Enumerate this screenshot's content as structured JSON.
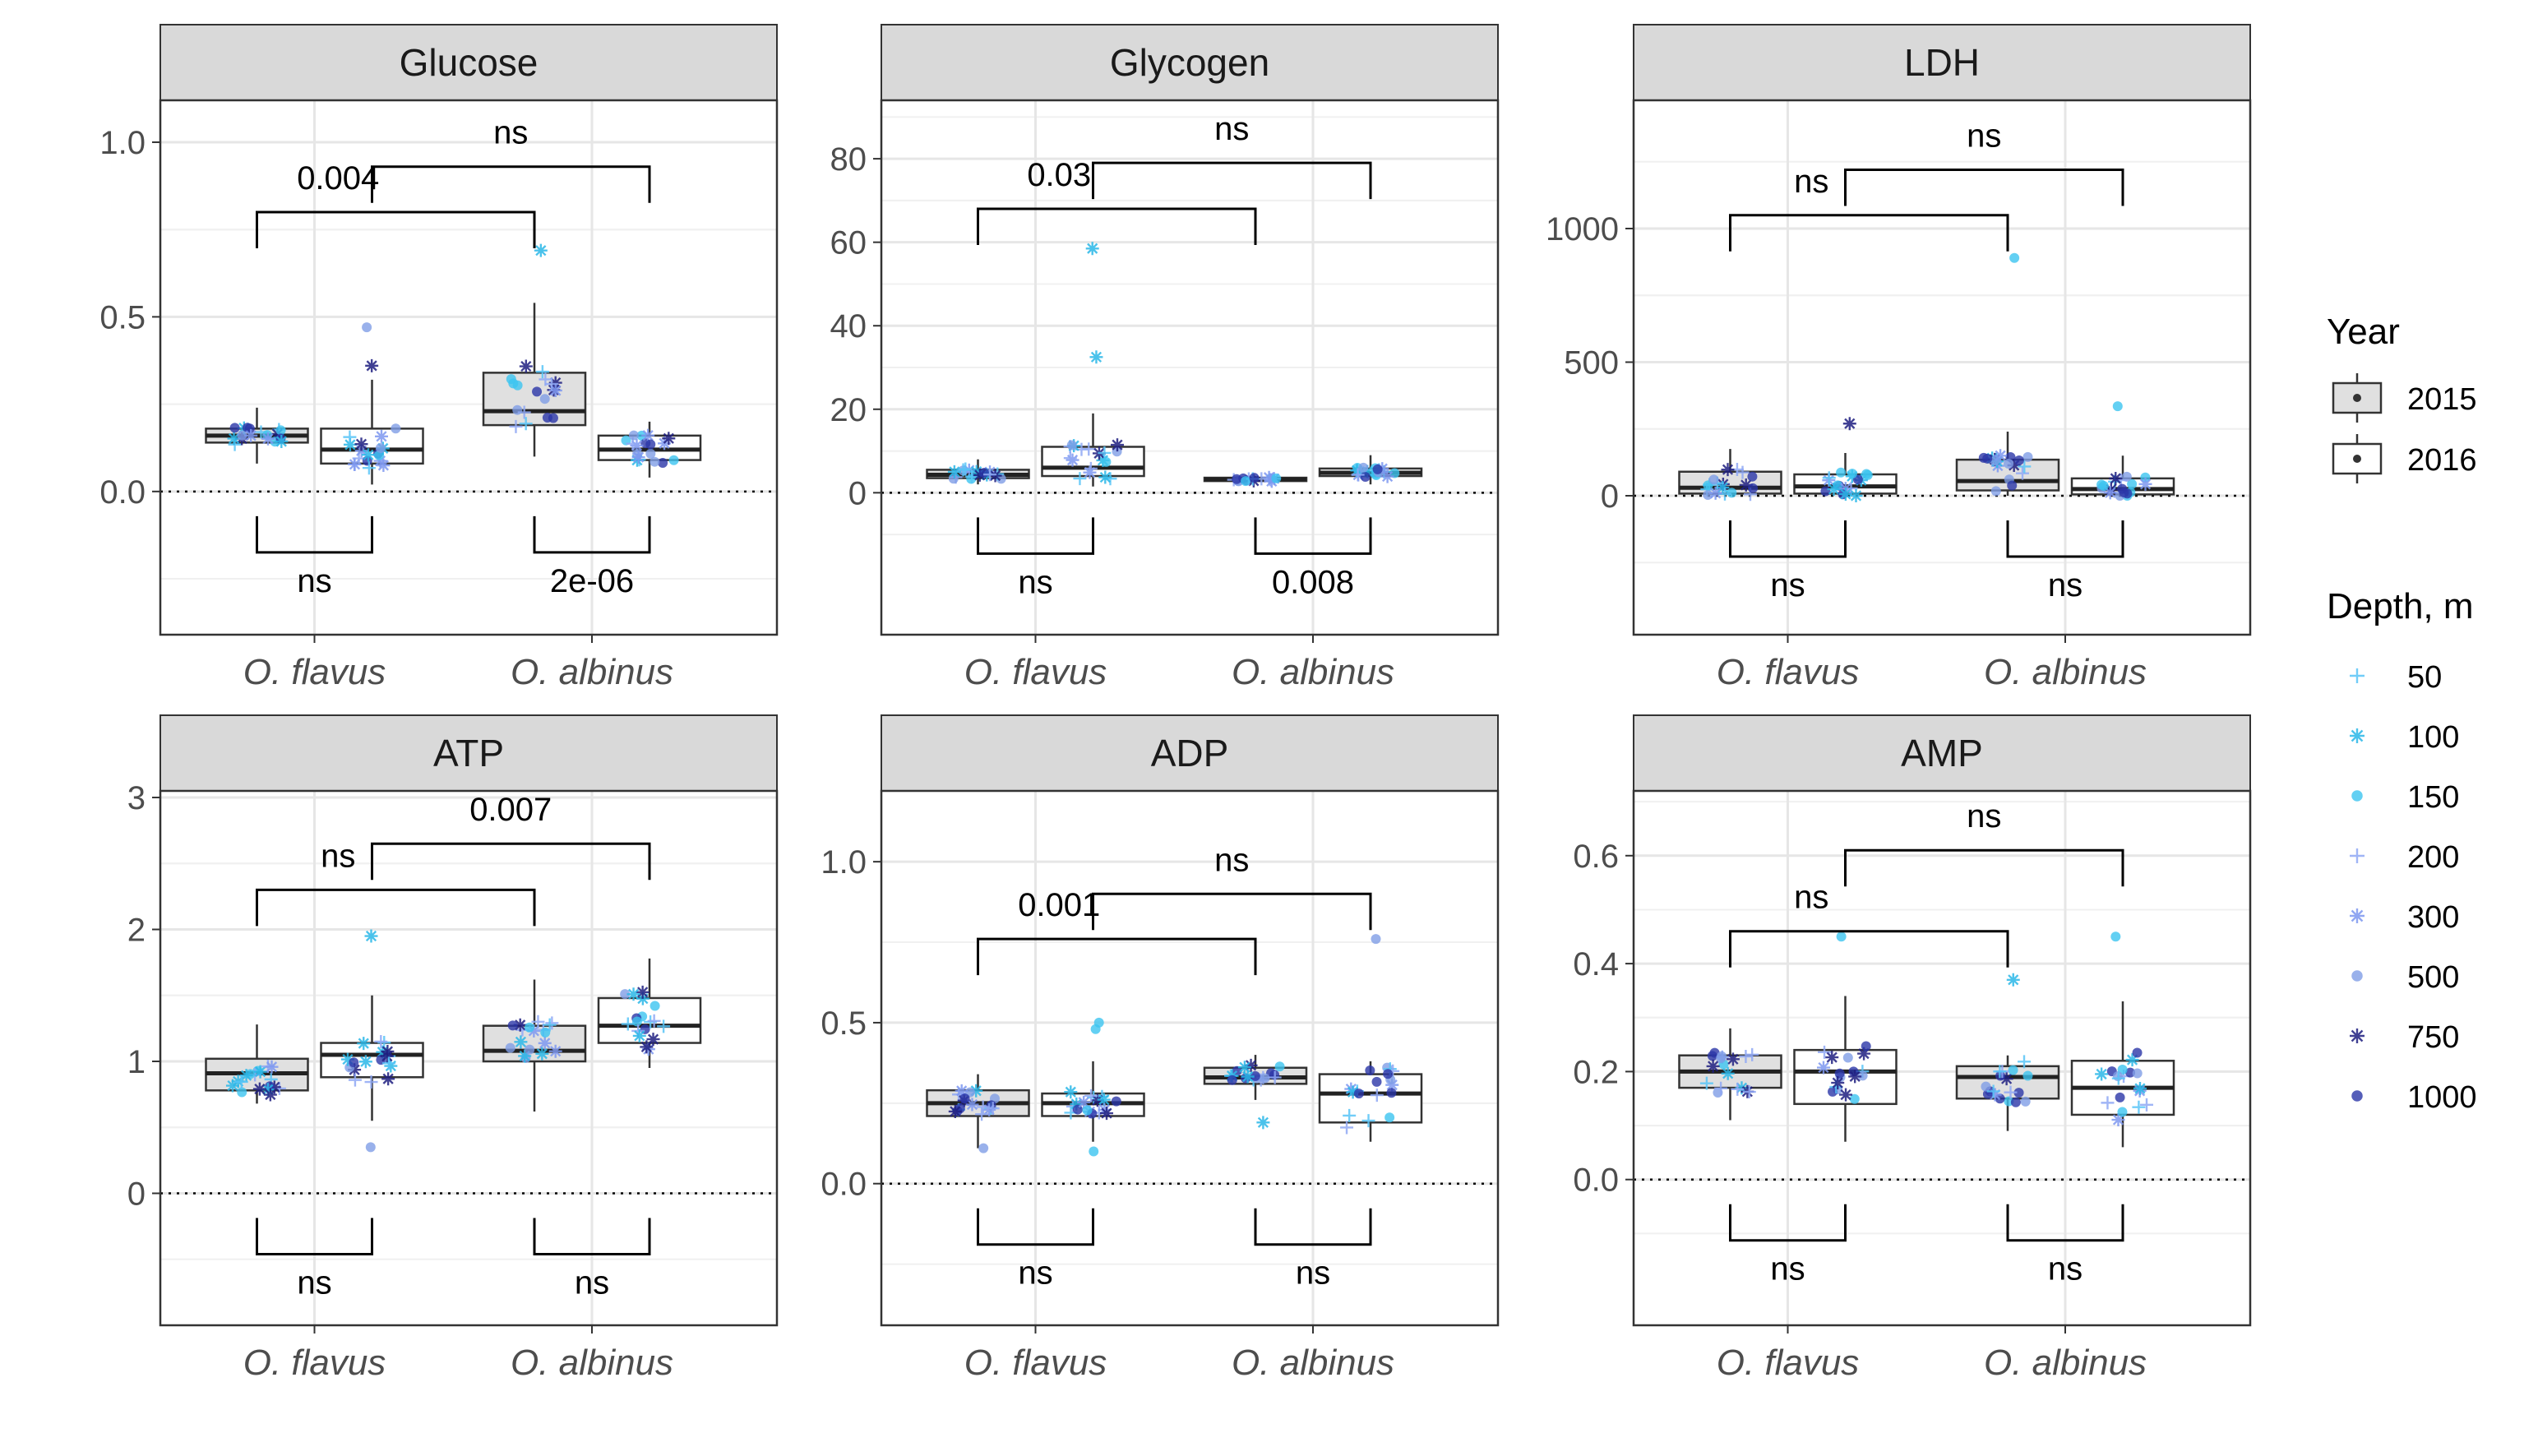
{
  "chart_data": {
    "type": "box",
    "categories": [
      "O. flavus",
      "O. albinus"
    ],
    "years": [
      "2015",
      "2016"
    ],
    "year_fills": {
      "2015": "#e0e0e0",
      "2016": "#ffffff"
    },
    "legend": {
      "year_title": "Year",
      "depth_title": "Depth, m",
      "depths": [
        {
          "label": "50",
          "color": "#58c4f7",
          "marker": "plus"
        },
        {
          "label": "100",
          "color": "#2ab7e8",
          "marker": "asterisk"
        },
        {
          "label": "150",
          "color": "#3cc4f0",
          "marker": "circle"
        },
        {
          "label": "200",
          "color": "#8fa8f5",
          "marker": "plus"
        },
        {
          "label": "300",
          "color": "#7e98f0",
          "marker": "asterisk"
        },
        {
          "label": "500",
          "color": "#7f9ee6",
          "marker": "circle"
        },
        {
          "label": "750",
          "color": "#1e1e80",
          "marker": "asterisk"
        },
        {
          "label": "1000",
          "color": "#2a36a8",
          "marker": "circle"
        }
      ]
    },
    "panels": [
      {
        "title": "Glucose",
        "ylim": [
          -0.41,
          1.12
        ],
        "ticks": [
          {
            "v": 0.0,
            "label": "0.0"
          },
          {
            "v": 0.5,
            "label": "0.5"
          },
          {
            "v": 1.0,
            "label": "1.0"
          }
        ],
        "boxes": [
          {
            "cat": 0,
            "year": "2015",
            "q1": 0.14,
            "median": 0.16,
            "q3": 0.18,
            "wlo": 0.08,
            "whi": 0.24
          },
          {
            "cat": 0,
            "year": "2016",
            "q1": 0.08,
            "median": 0.12,
            "q3": 0.18,
            "wlo": 0.02,
            "whi": 0.32
          },
          {
            "cat": 1,
            "year": "2015",
            "q1": 0.19,
            "median": 0.23,
            "q3": 0.34,
            "wlo": 0.1,
            "whi": 0.54
          },
          {
            "cat": 1,
            "year": "2016",
            "q1": 0.09,
            "median": 0.12,
            "q3": 0.16,
            "wlo": 0.04,
            "whi": 0.2
          }
        ],
        "outliers": [
          {
            "cat": 1,
            "year": "2015",
            "v": 0.69,
            "depth": "100"
          },
          {
            "cat": 0,
            "year": "2016",
            "v": 0.47,
            "depth": "500"
          },
          {
            "cat": 0,
            "year": "2016",
            "v": 0.36,
            "depth": "750"
          }
        ],
        "cross_test": {
          "left": "0.004",
          "right": "ns",
          "left_y": 0.8,
          "right_y": 0.93
        },
        "within_test": [
          "ns",
          "2e-06"
        ]
      },
      {
        "title": "Glycogen",
        "ylim": [
          -34,
          94
        ],
        "ticks": [
          {
            "v": 0,
            "label": "0"
          },
          {
            "v": 20,
            "label": "20"
          },
          {
            "v": 40,
            "label": "40"
          },
          {
            "v": 60,
            "label": "60"
          },
          {
            "v": 80,
            "label": "80"
          }
        ],
        "boxes": [
          {
            "cat": 0,
            "year": "2015",
            "q1": 3.5,
            "median": 4.3,
            "q3": 5.5,
            "wlo": 2.0,
            "whi": 8.0
          },
          {
            "cat": 0,
            "year": "2016",
            "q1": 4.0,
            "median": 6.0,
            "q3": 11.0,
            "wlo": 1.5,
            "whi": 19.0
          },
          {
            "cat": 1,
            "year": "2015",
            "q1": 2.8,
            "median": 3.2,
            "q3": 3.6,
            "wlo": 2.5,
            "whi": 4.0
          },
          {
            "cat": 1,
            "year": "2016",
            "q1": 4.0,
            "median": 4.8,
            "q3": 5.8,
            "wlo": 2.0,
            "whi": 9.0
          }
        ],
        "outliers": [
          {
            "cat": 0,
            "year": "2016",
            "v": 58.5,
            "depth": "100"
          },
          {
            "cat": 0,
            "year": "2016",
            "v": 32.5,
            "depth": "100"
          }
        ],
        "cross_test": {
          "left": "0.03",
          "right": "ns",
          "left_y": 68,
          "right_y": 79
        },
        "within_test": [
          "ns",
          "0.008"
        ]
      },
      {
        "title": "LDH",
        "ylim": [
          -520,
          1480
        ],
        "ticks": [
          {
            "v": 0,
            "label": "0"
          },
          {
            "v": 500,
            "label": "500"
          },
          {
            "v": 1000,
            "label": "1000"
          }
        ],
        "boxes": [
          {
            "cat": 0,
            "year": "2015",
            "q1": 8,
            "median": 30,
            "q3": 90,
            "wlo": 0,
            "whi": 175
          },
          {
            "cat": 0,
            "year": "2016",
            "q1": 8,
            "median": 35,
            "q3": 80,
            "wlo": 0,
            "whi": 160
          },
          {
            "cat": 1,
            "year": "2015",
            "q1": 20,
            "median": 55,
            "q3": 135,
            "wlo": 0,
            "whi": 240
          },
          {
            "cat": 1,
            "year": "2016",
            "q1": 5,
            "median": 25,
            "q3": 65,
            "wlo": 0,
            "whi": 150
          }
        ],
        "outliers": [
          {
            "cat": 1,
            "year": "2015",
            "v": 890,
            "depth": "150"
          },
          {
            "cat": 1,
            "year": "2016",
            "v": 335,
            "depth": "150"
          },
          {
            "cat": 0,
            "year": "2016",
            "v": 270,
            "depth": "750"
          }
        ],
        "cross_test": {
          "left": "ns",
          "right": "ns",
          "left_y": 1050,
          "right_y": 1220
        },
        "within_test": [
          "ns",
          "ns"
        ]
      },
      {
        "title": "ATP",
        "ylim": [
          -1.0,
          3.05
        ],
        "ticks": [
          {
            "v": 0,
            "label": "0"
          },
          {
            "v": 1,
            "label": "1"
          },
          {
            "v": 2,
            "label": "2"
          },
          {
            "v": 3,
            "label": "3"
          }
        ],
        "boxes": [
          {
            "cat": 0,
            "year": "2015",
            "q1": 0.78,
            "median": 0.91,
            "q3": 1.02,
            "wlo": 0.68,
            "whi": 1.28
          },
          {
            "cat": 0,
            "year": "2016",
            "q1": 0.88,
            "median": 1.05,
            "q3": 1.14,
            "wlo": 0.55,
            "whi": 1.5
          },
          {
            "cat": 1,
            "year": "2015",
            "q1": 1.0,
            "median": 1.08,
            "q3": 1.27,
            "wlo": 0.62,
            "whi": 1.62
          },
          {
            "cat": 1,
            "year": "2016",
            "q1": 1.14,
            "median": 1.27,
            "q3": 1.48,
            "wlo": 0.95,
            "whi": 1.78
          }
        ],
        "outliers": [
          {
            "cat": 0,
            "year": "2016",
            "v": 1.95,
            "depth": "100"
          },
          {
            "cat": 0,
            "year": "2016",
            "v": 0.35,
            "depth": "500"
          }
        ],
        "cross_test": {
          "left": "ns",
          "right": "0.007",
          "left_y": 2.3,
          "right_y": 2.65
        },
        "within_test": [
          "ns",
          "ns"
        ]
      },
      {
        "title": "ADP",
        "ylim": [
          -0.44,
          1.22
        ],
        "ticks": [
          {
            "v": 0.0,
            "label": "0.0"
          },
          {
            "v": 0.5,
            "label": "0.5"
          },
          {
            "v": 1.0,
            "label": "1.0"
          }
        ],
        "boxes": [
          {
            "cat": 0,
            "year": "2015",
            "q1": 0.21,
            "median": 0.25,
            "q3": 0.29,
            "wlo": 0.11,
            "whi": 0.34
          },
          {
            "cat": 0,
            "year": "2016",
            "q1": 0.21,
            "median": 0.25,
            "q3": 0.28,
            "wlo": 0.13,
            "whi": 0.38
          },
          {
            "cat": 1,
            "year": "2015",
            "q1": 0.31,
            "median": 0.33,
            "q3": 0.36,
            "wlo": 0.26,
            "whi": 0.4
          },
          {
            "cat": 1,
            "year": "2016",
            "q1": 0.19,
            "median": 0.28,
            "q3": 0.34,
            "wlo": 0.13,
            "whi": 0.38
          }
        ],
        "outliers": [
          {
            "cat": 0,
            "year": "2016",
            "v": 0.5,
            "depth": "150"
          },
          {
            "cat": 0,
            "year": "2016",
            "v": 0.48,
            "depth": "150"
          },
          {
            "cat": 0,
            "year": "2016",
            "v": 0.1,
            "depth": "150"
          },
          {
            "cat": 0,
            "year": "2015",
            "v": 0.11,
            "depth": "500"
          },
          {
            "cat": 1,
            "year": "2016",
            "v": 0.76,
            "depth": "500"
          },
          {
            "cat": 1,
            "year": "2015",
            "v": 0.19,
            "depth": "100"
          }
        ],
        "cross_test": {
          "left": "0.001",
          "right": "ns",
          "left_y": 0.76,
          "right_y": 0.9
        },
        "within_test": [
          "ns",
          "ns"
        ]
      },
      {
        "title": "AMP",
        "ylim": [
          -0.27,
          0.72
        ],
        "ticks": [
          {
            "v": 0.0,
            "label": "0.0"
          },
          {
            "v": 0.2,
            "label": "0.2"
          },
          {
            "v": 0.4,
            "label": "0.4"
          },
          {
            "v": 0.6,
            "label": "0.6"
          }
        ],
        "boxes": [
          {
            "cat": 0,
            "year": "2015",
            "q1": 0.17,
            "median": 0.2,
            "q3": 0.23,
            "wlo": 0.11,
            "whi": 0.28
          },
          {
            "cat": 0,
            "year": "2016",
            "q1": 0.14,
            "median": 0.2,
            "q3": 0.24,
            "wlo": 0.07,
            "whi": 0.34
          },
          {
            "cat": 1,
            "year": "2015",
            "q1": 0.15,
            "median": 0.19,
            "q3": 0.21,
            "wlo": 0.09,
            "whi": 0.23
          },
          {
            "cat": 1,
            "year": "2016",
            "q1": 0.12,
            "median": 0.17,
            "q3": 0.22,
            "wlo": 0.06,
            "whi": 0.33
          }
        ],
        "outliers": [
          {
            "cat": 0,
            "year": "2016",
            "v": 0.45,
            "depth": "150"
          },
          {
            "cat": 1,
            "year": "2016",
            "v": 0.45,
            "depth": "150"
          },
          {
            "cat": 1,
            "year": "2015",
            "v": 0.37,
            "depth": "100"
          }
        ],
        "cross_test": {
          "left": "ns",
          "right": "ns",
          "left_y": 0.46,
          "right_y": 0.61
        },
        "within_test": [
          "ns",
          "ns"
        ]
      }
    ]
  }
}
